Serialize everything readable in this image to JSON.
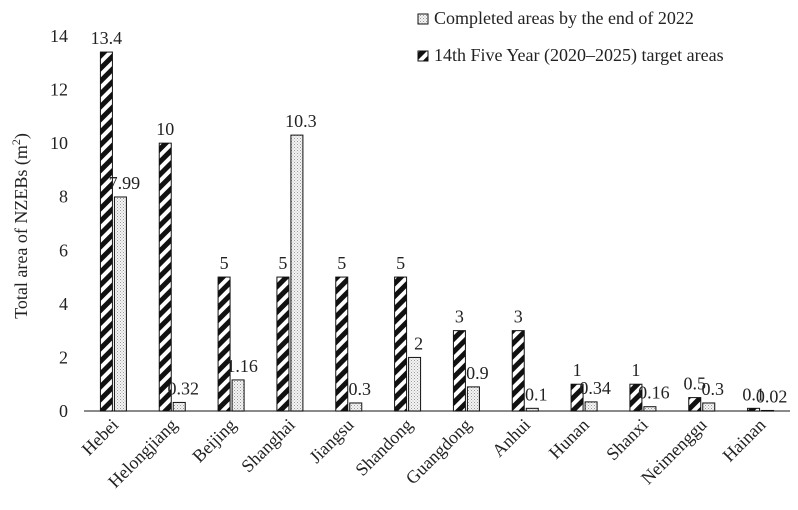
{
  "chart_data": {
    "type": "bar",
    "title": "",
    "xlabel": "",
    "ylabel_main": "Total area of NZEBs (m",
    "ylabel_sup": "2",
    "ylabel_tail": ")",
    "ylim": [
      0,
      14
    ],
    "yticks": [
      "0",
      "2",
      "4",
      "6",
      "8",
      "10",
      "12",
      "14"
    ],
    "grid": false,
    "legend_position": "top-right",
    "categories": [
      "Hebei",
      "Helongjiang",
      "Beijing",
      "Shanghai",
      "Jiangsu",
      "Shandong",
      "Guangdong",
      "Anhui",
      "Hunan",
      "Shanxi",
      "Neimenggu",
      "Hainan"
    ],
    "series": [
      {
        "name": "14th Five Year (2020–2025) target areas",
        "pattern": "diagonal-hatch",
        "values": [
          13.4,
          10,
          5,
          5,
          5,
          5,
          3,
          3,
          1,
          1,
          0.5,
          0.1
        ],
        "labels": [
          "13.4",
          "10",
          "5",
          "5",
          "5",
          "5",
          "3",
          "3",
          "1",
          "1",
          "0.5",
          "0.1"
        ]
      },
      {
        "name": "Completed areas by the end of 2022",
        "pattern": "dotted",
        "values": [
          7.99,
          0.32,
          1.16,
          10.3,
          0.3,
          2,
          0.9,
          0.1,
          0.34,
          0.16,
          0.3,
          0.02
        ],
        "labels": [
          "7.99",
          "0.32",
          "1.16",
          "10.3",
          "0.3",
          "2",
          "0.9",
          "0.1",
          "0.34",
          "0.16",
          "0.3",
          "0.02"
        ]
      }
    ],
    "legend": [
      {
        "label": "Completed areas by the end of 2022",
        "swatch": "dotted"
      },
      {
        "label": "14th Five Year (2020–2025) target areas",
        "swatch": "diagonal-hatch"
      }
    ]
  }
}
